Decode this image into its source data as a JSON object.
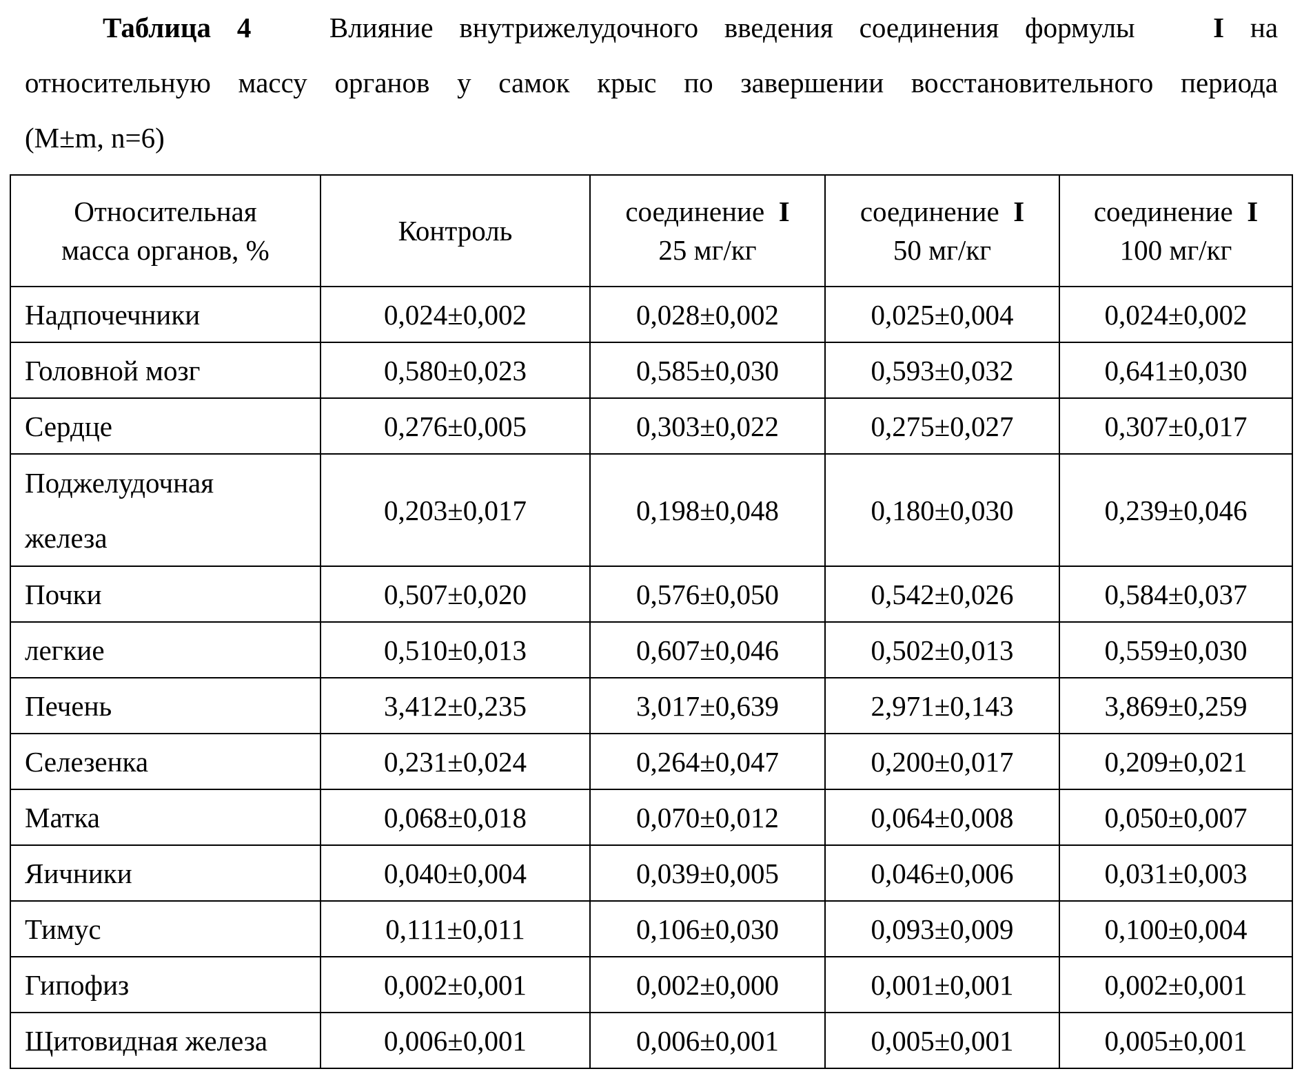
{
  "caption": {
    "label": "Таблица 4",
    "text_line1": "Влияние внутрижелудочного введения соединения формулы",
    "formula": "I",
    "text_line1_end": "на",
    "text_line2": "относительную массу органов у самок крыс по завершении восстановительного периода",
    "text_line3": "(M±m, n=6)"
  },
  "table": {
    "headers": [
      {
        "line1": "Относительная",
        "line2": "масса органов, %"
      },
      {
        "line1": "Контроль",
        "line2": ""
      },
      {
        "line1": "соединение",
        "bold": "I",
        "line2": "25 мг/кг"
      },
      {
        "line1": "соединение",
        "bold": "I",
        "line2": "50 мг/кг"
      },
      {
        "line1": "соединение",
        "bold": "I",
        "line2": "100 мг/кг"
      }
    ],
    "rows": [
      {
        "organ": "Надпочечники",
        "values": [
          "0,024±0,002",
          "0,028±0,002",
          "0,025±0,004",
          "0,024±0,002"
        ]
      },
      {
        "organ": "Головной мозг",
        "values": [
          "0,580±0,023",
          "0,585±0,030",
          "0,593±0,032",
          "0,641±0,030"
        ]
      },
      {
        "organ": "Сердце",
        "values": [
          "0,276±0,005",
          "0,303±0,022",
          "0,275±0,027",
          "0,307±0,017"
        ]
      },
      {
        "organ": "Поджелудочная железа",
        "values": [
          "0,203±0,017",
          "0,198±0,048",
          "0,180±0,030",
          "0,239±0,046"
        ]
      },
      {
        "organ": "Почки",
        "values": [
          "0,507±0,020",
          "0,576±0,050",
          "0,542±0,026",
          "0,584±0,037"
        ]
      },
      {
        "organ": "легкие",
        "values": [
          "0,510±0,013",
          "0,607±0,046",
          "0,502±0,013",
          "0,559±0,030"
        ]
      },
      {
        "organ": "Печень",
        "values": [
          "3,412±0,235",
          "3,017±0,639",
          "2,971±0,143",
          "3,869±0,259"
        ]
      },
      {
        "organ": "Селезенка",
        "values": [
          "0,231±0,024",
          "0,264±0,047",
          "0,200±0,017",
          "0,209±0,021"
        ]
      },
      {
        "organ": "Матка",
        "values": [
          "0,068±0,018",
          "0,070±0,012",
          "0,064±0,008",
          "0,050±0,007"
        ]
      },
      {
        "organ": "Яичники",
        "values": [
          "0,040±0,004",
          "0,039±0,005",
          "0,046±0,006",
          "0,031±0,003"
        ]
      },
      {
        "organ": "Тимус",
        "values": [
          "0,111±0,011",
          "0,106±0,030",
          "0,093±0,009",
          "0,100±0,004"
        ]
      },
      {
        "organ": "Гипофиз",
        "values": [
          "0,002±0,001",
          "0,002±0,000",
          "0,001±0,001",
          "0,002±0,001"
        ]
      },
      {
        "organ": "Щитовидная железа",
        "values": [
          "0,006±0,001",
          "0,006±0,001",
          "0,005±0,001",
          "0,005±0,001"
        ]
      }
    ]
  }
}
